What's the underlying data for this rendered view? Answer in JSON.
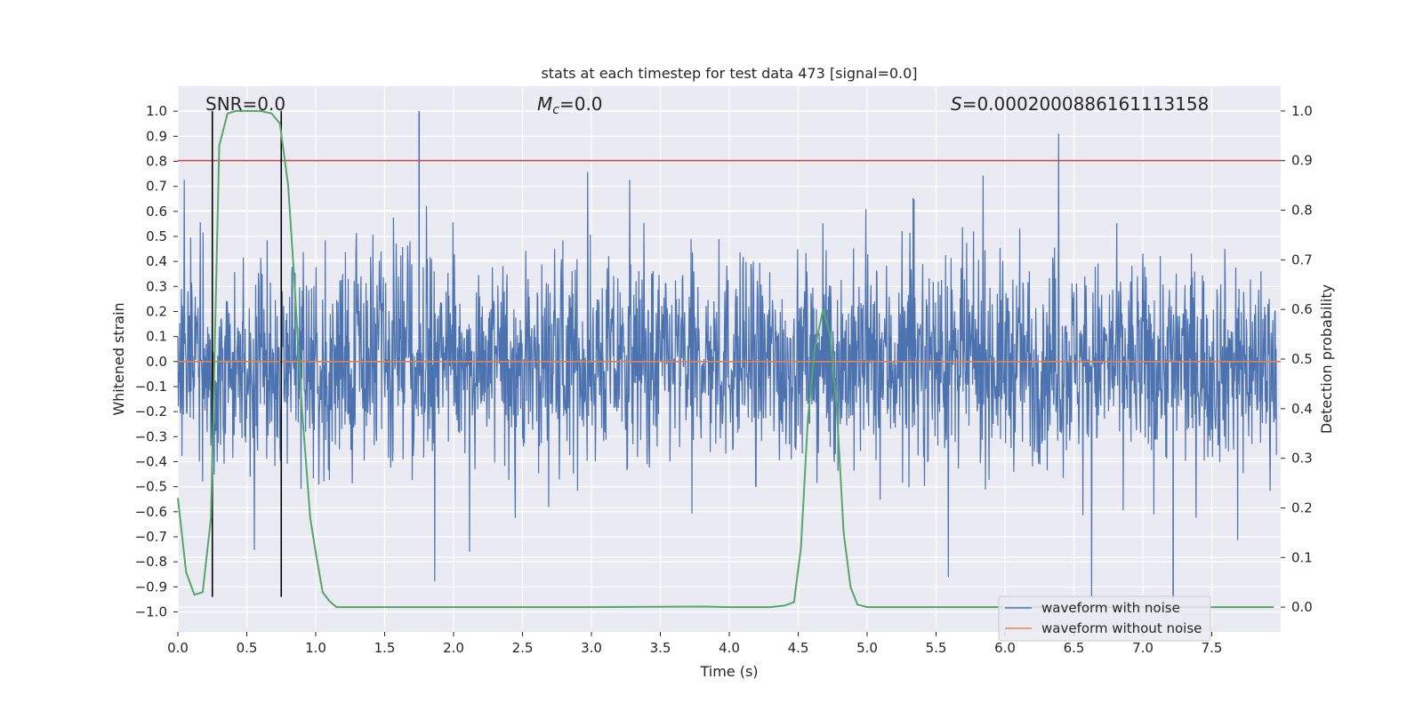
{
  "chart_data": {
    "type": "line",
    "title": "stats at each timestep for test data 473 [signal=0.0]",
    "xlabel": "Time (s)",
    "ylabel": "Whitened strain",
    "ylabel_right": "Detection probability",
    "xlim": [
      0.0,
      8.0
    ],
    "ylim": [
      -1.08,
      1.1
    ],
    "ylim_right": [
      -0.05,
      1.05
    ],
    "x_ticks": [
      "0.0",
      "0.5",
      "1.0",
      "1.5",
      "2.0",
      "2.5",
      "3.0",
      "3.5",
      "4.0",
      "4.5",
      "5.0",
      "5.5",
      "6.0",
      "6.5",
      "7.0",
      "7.5"
    ],
    "y_ticks": [
      "1.0",
      "0.9",
      "0.8",
      "0.7",
      "0.6",
      "0.5",
      "0.4",
      "0.3",
      "0.2",
      "0.1",
      "0.0",
      "−0.1",
      "−0.2",
      "−0.3",
      "−0.4",
      "−0.5",
      "−0.6",
      "−0.7",
      "−0.8",
      "−0.9",
      "−1.0"
    ],
    "y_ticks_right": [
      "1.0",
      "0.9",
      "0.8",
      "0.7",
      "0.6",
      "0.5",
      "0.4",
      "0.3",
      "0.2",
      "0.1",
      "0.0"
    ],
    "grid": true,
    "legend_position": "bottom-right",
    "annotations": {
      "snr": "SNR=0.0",
      "mc_symbol": "M",
      "mc_sub": "c",
      "mc_value": "=0.0",
      "s_symbol": "S",
      "s_value": "=0.0002000886161113158"
    },
    "series": [
      {
        "name": "waveform with noise",
        "color": "#4c72b0",
        "axis": "left",
        "style": "noise",
        "amplitude_range": [
          -1.0,
          1.0
        ]
      },
      {
        "name": "waveform without noise",
        "color": "#dd8452",
        "axis": "left",
        "values_constant": 0.0
      }
    ],
    "probability_series": {
      "color": "#55a868",
      "axis": "right",
      "x": [
        0.0,
        0.06,
        0.12,
        0.18,
        0.24,
        0.3,
        0.36,
        0.42,
        0.5,
        0.6,
        0.68,
        0.74,
        0.8,
        0.84,
        0.9,
        0.96,
        1.0,
        1.05,
        1.1,
        1.15,
        1.3,
        2.0,
        3.0,
        3.8,
        4.0,
        4.3,
        4.4,
        4.47,
        4.52,
        4.57,
        4.62,
        4.68,
        4.7,
        4.73,
        4.78,
        4.83,
        4.88,
        4.93,
        5.0,
        5.5,
        6.0,
        7.0,
        7.95
      ],
      "y": [
        0.22,
        0.07,
        0.025,
        0.03,
        0.18,
        0.93,
        0.995,
        1.0,
        1.0,
        1.0,
        0.995,
        0.975,
        0.85,
        0.68,
        0.4,
        0.18,
        0.11,
        0.03,
        0.012,
        0.0,
        0.0,
        0.0,
        0.0,
        0.001,
        0.0,
        0.0,
        0.003,
        0.01,
        0.12,
        0.38,
        0.52,
        0.6,
        0.58,
        0.55,
        0.4,
        0.15,
        0.04,
        0.005,
        0.0,
        0.0,
        0.0,
        0.0,
        0.0
      ]
    },
    "threshold_line": {
      "color": "#c44e52",
      "axis": "right",
      "value": 0.9
    },
    "vertical_markers": {
      "color": "#000000",
      "x": [
        0.25,
        0.75
      ],
      "y_range": [
        -0.94,
        1.0
      ]
    }
  }
}
